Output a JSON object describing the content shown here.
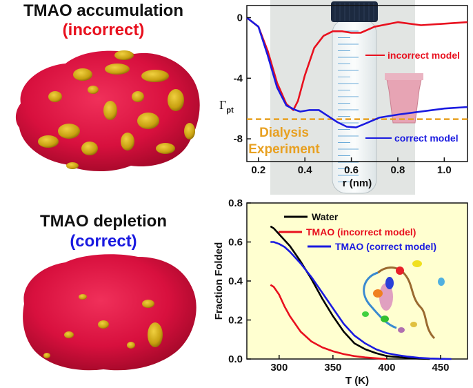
{
  "panels": {
    "accumulation": {
      "title": "TMAO accumulation",
      "status": "(incorrect)"
    },
    "depletion": {
      "title": "TMAO depletion",
      "status": "(correct)"
    }
  },
  "colors": {
    "incorrect": "#e8101e",
    "correct": "#1a1ae0",
    "water": "#000000",
    "dialysis": "#e8a020",
    "protein": "#d8103e",
    "tmao": "#c8a010",
    "plot_bg": "#ffffd0"
  },
  "chart_data": [
    {
      "type": "line",
      "xlabel": "r (nm)",
      "ylabel": "Γpt",
      "ylabel_main": "Γ",
      "ylabel_sub": "pt",
      "xlim": [
        0.15,
        1.1
      ],
      "ylim": [
        -9.5,
        0.8
      ],
      "xticks": [
        0.2,
        0.4,
        0.6,
        0.8,
        1.0
      ],
      "xtick_labels": [
        "0.2",
        "0.4",
        "0.6",
        "0.8",
        "1.0"
      ],
      "yticks": [
        0,
        -4,
        -8
      ],
      "ytick_labels": [
        "0",
        "-4",
        "-8"
      ],
      "series": [
        {
          "name": "incorrect model",
          "color": "#e8101e",
          "x": [
            0.15,
            0.2,
            0.24,
            0.28,
            0.32,
            0.35,
            0.37,
            0.4,
            0.44,
            0.48,
            0.52,
            0.56,
            0.6,
            0.64,
            0.7,
            0.8,
            0.9,
            1.0,
            1.1
          ],
          "y": [
            0.0,
            -0.6,
            -2.2,
            -4.3,
            -5.7,
            -6.1,
            -5.5,
            -3.8,
            -2.0,
            -1.2,
            -0.9,
            -0.9,
            -1.0,
            -1.0,
            -0.6,
            -0.3,
            -0.5,
            -0.4,
            -0.3
          ]
        },
        {
          "name": "correct model",
          "color": "#1a1ae0",
          "x": [
            0.15,
            0.2,
            0.24,
            0.28,
            0.32,
            0.36,
            0.38,
            0.42,
            0.46,
            0.5,
            0.54,
            0.58,
            0.62,
            0.66,
            0.72,
            0.8,
            0.9,
            1.0,
            1.1
          ],
          "y": [
            0.0,
            -0.6,
            -2.5,
            -4.6,
            -5.8,
            -6.1,
            -6.2,
            -6.1,
            -6.1,
            -6.5,
            -6.9,
            -7.2,
            -7.25,
            -7.0,
            -6.6,
            -6.4,
            -6.2,
            -6.0,
            -5.9
          ]
        }
      ],
      "reference_line": {
        "label_line1": "Dialysis",
        "label_line2": "Experiment",
        "y": -6.7,
        "color": "#e8a020"
      }
    },
    {
      "type": "line",
      "xlabel": "T (K)",
      "ylabel": "Fraction Folded",
      "xlim": [
        270,
        475
      ],
      "ylim": [
        0.0,
        0.8
      ],
      "xticks": [
        300,
        350,
        400,
        450
      ],
      "xtick_labels": [
        "300",
        "350",
        "400",
        "450"
      ],
      "yticks": [
        0.0,
        0.2,
        0.4,
        0.6,
        0.8
      ],
      "ytick_labels": [
        "0.0",
        "0.2",
        "0.4",
        "0.6",
        "0.8"
      ],
      "legend": "top-left",
      "series": [
        {
          "name": "Water",
          "color": "#000000",
          "x": [
            292,
            295,
            300,
            305,
            310,
            320,
            330,
            340,
            350,
            360,
            370,
            380,
            390,
            400,
            410,
            420,
            430,
            440
          ],
          "y": [
            0.68,
            0.67,
            0.64,
            0.61,
            0.58,
            0.5,
            0.41,
            0.31,
            0.22,
            0.14,
            0.08,
            0.05,
            0.03,
            0.015,
            0.01,
            0.005,
            0.002,
            0.0
          ]
        },
        {
          "name": "TMAO (incorrect model)",
          "color": "#e8101e",
          "x": [
            292,
            295,
            300,
            305,
            310,
            320,
            330,
            340,
            350,
            360,
            370,
            380,
            390,
            400
          ],
          "y": [
            0.38,
            0.37,
            0.33,
            0.27,
            0.22,
            0.14,
            0.09,
            0.06,
            0.04,
            0.025,
            0.015,
            0.008,
            0.004,
            0.0
          ]
        },
        {
          "name": "TMAO (correct model)",
          "color": "#1a1ae0",
          "x": [
            292,
            295,
            300,
            305,
            310,
            320,
            330,
            340,
            350,
            360,
            370,
            380,
            390,
            400,
            410,
            420,
            430,
            440,
            450,
            460
          ],
          "y": [
            0.6,
            0.6,
            0.59,
            0.575,
            0.55,
            0.49,
            0.42,
            0.34,
            0.26,
            0.18,
            0.12,
            0.08,
            0.05,
            0.03,
            0.02,
            0.012,
            0.006,
            0.003,
            0.001,
            0.0
          ]
        }
      ]
    }
  ]
}
